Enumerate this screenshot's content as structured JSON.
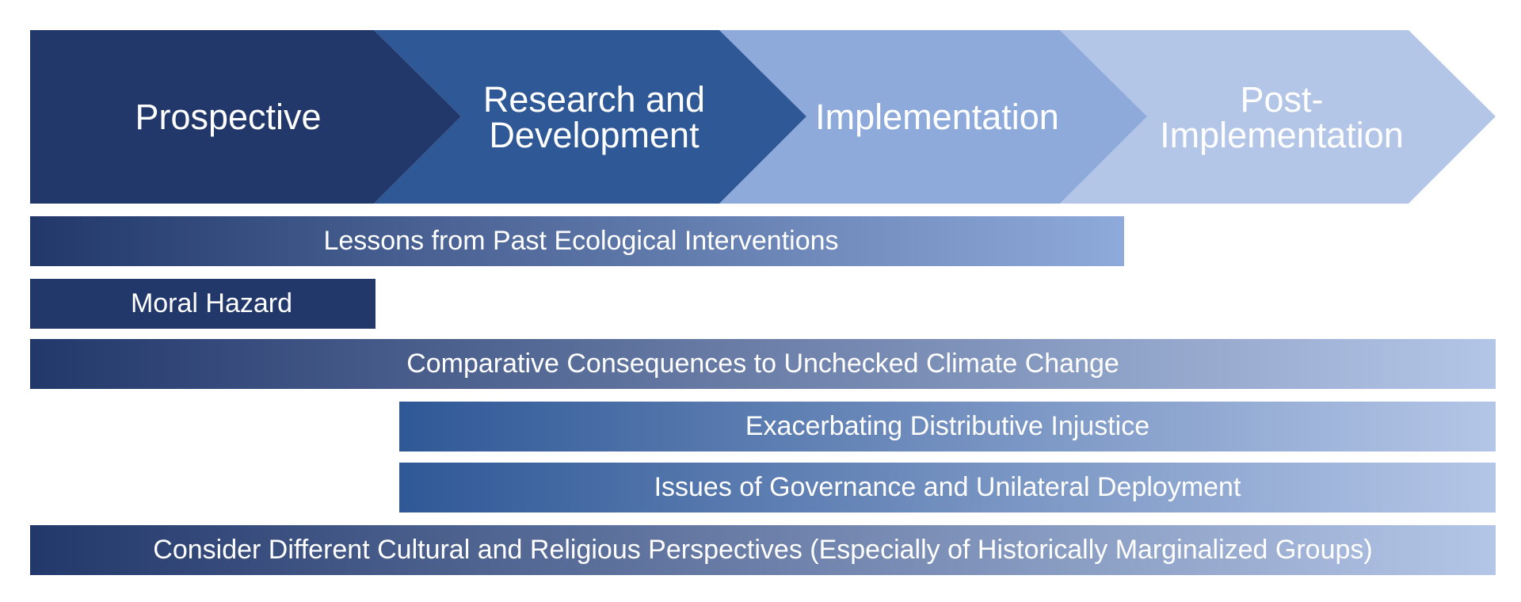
{
  "phases": [
    {
      "label": "Prospective",
      "color": "#22386a",
      "text_color": "#ffffff"
    },
    {
      "label": "Research and\nDevelopment",
      "color": "#2f5896",
      "text_color": "#ffffff"
    },
    {
      "label": "Implementation",
      "color": "#8eaadb",
      "text_color": "#ffffff"
    },
    {
      "label": "Post-\nImplementation",
      "color": "#b4c6e7",
      "text_color": "#ffffff"
    }
  ],
  "considerations": [
    {
      "label": "Lessons from Past Ecological Interventions",
      "from_color": "#22386a",
      "to_color": "#8eaadb"
    },
    {
      "label": "Moral Hazard",
      "from_color": "#22386a",
      "to_color": "#22386a"
    },
    {
      "label": "Comparative Consequences to Unchecked Climate Change",
      "from_color": "#22386a",
      "to_color": "#b4c6e7"
    },
    {
      "label": "Exacerbating Distributive Injustice",
      "from_color": "#2f5896",
      "to_color": "#b4c6e7"
    },
    {
      "label": "Issues of Governance and Unilateral Deployment",
      "from_color": "#2f5896",
      "to_color": "#b4c6e7"
    },
    {
      "label": "Consider Different Cultural and Religious Perspectives (Especially of Historically Marginalized Groups)",
      "from_color": "#22386a",
      "to_color": "#b4c6e7"
    }
  ]
}
